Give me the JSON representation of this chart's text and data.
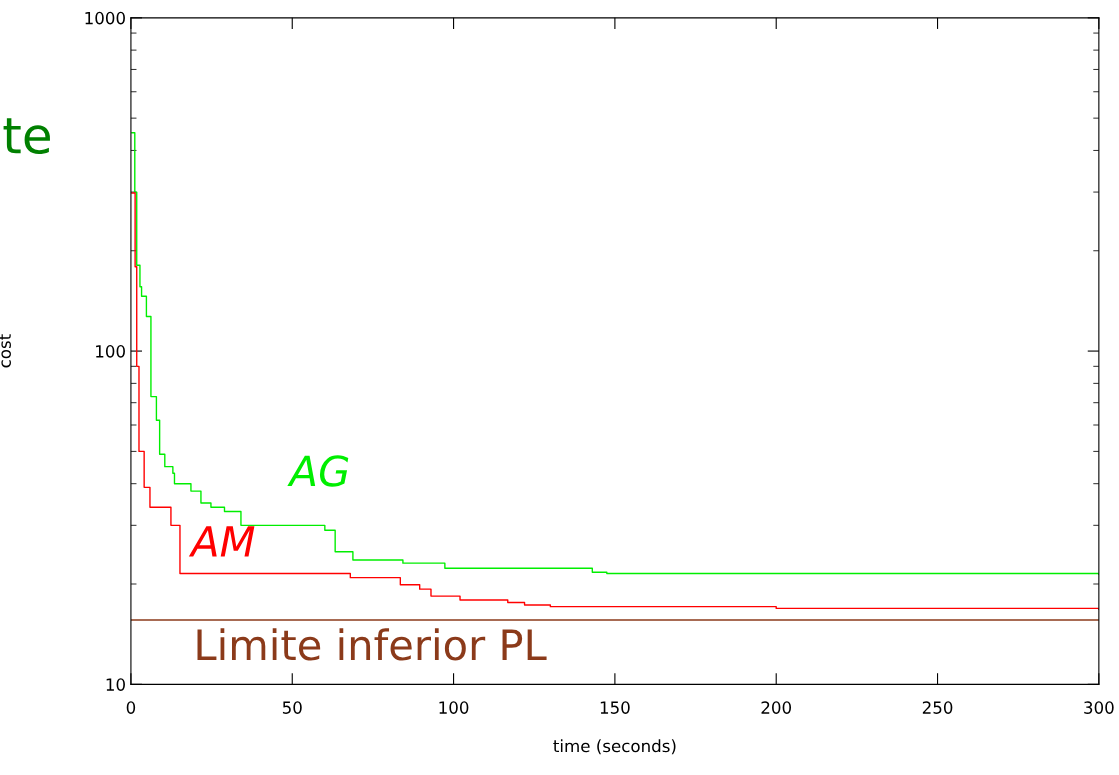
{
  "chart_data": {
    "type": "step",
    "xlabel": "time (seconds)",
    "ylabel": "cost",
    "log": "y",
    "xlim": [
      0,
      300
    ],
    "xticks": [
      0,
      50,
      100,
      150,
      200,
      250,
      300
    ],
    "ylim": [
      10,
      1000
    ],
    "yticks": [
      10,
      100,
      1000
    ],
    "grid": false,
    "legend": false,
    "series": [
      {
        "name": "AG",
        "color": "#00ee00",
        "x": [
          0.3,
          1.2,
          1.8,
          2.8,
          3.3,
          4.8,
          6.2,
          7.9,
          8.9,
          10.5,
          13,
          13.5,
          18.6,
          21.7,
          24.8,
          29,
          34.1,
          60.1,
          63.3,
          68.8,
          84.3,
          97.3,
          143,
          147.5,
          300
        ],
        "values": [
          452,
          300,
          181,
          156,
          146,
          127,
          73,
          62,
          49,
          45,
          43,
          40,
          38,
          35,
          34,
          33,
          30,
          29,
          25,
          23.6,
          23.1,
          22.3,
          21.7,
          21.5,
          21.4
        ]
      },
      {
        "name": "AM",
        "color": "#ff0000",
        "x": [
          0.3,
          1.3,
          1.8,
          2.5,
          4.1,
          5.9,
          11,
          12.4,
          15.2,
          66.8,
          68,
          83.5,
          89.5,
          93,
          102,
          116.8,
          122,
          130,
          200,
          300
        ],
        "values": [
          298,
          179,
          90,
          50,
          39,
          34,
          34,
          30,
          21.5,
          21.5,
          20.9,
          19.9,
          19.3,
          18.4,
          17.9,
          17.6,
          17.3,
          17.1,
          16.9,
          16.8
        ]
      }
    ],
    "ref_lines": [
      {
        "axis": "y",
        "value": 15.6,
        "label": "Limite inferior PL",
        "color": "#8b3a1a"
      }
    ],
    "annotations": [
      "te"
    ]
  }
}
